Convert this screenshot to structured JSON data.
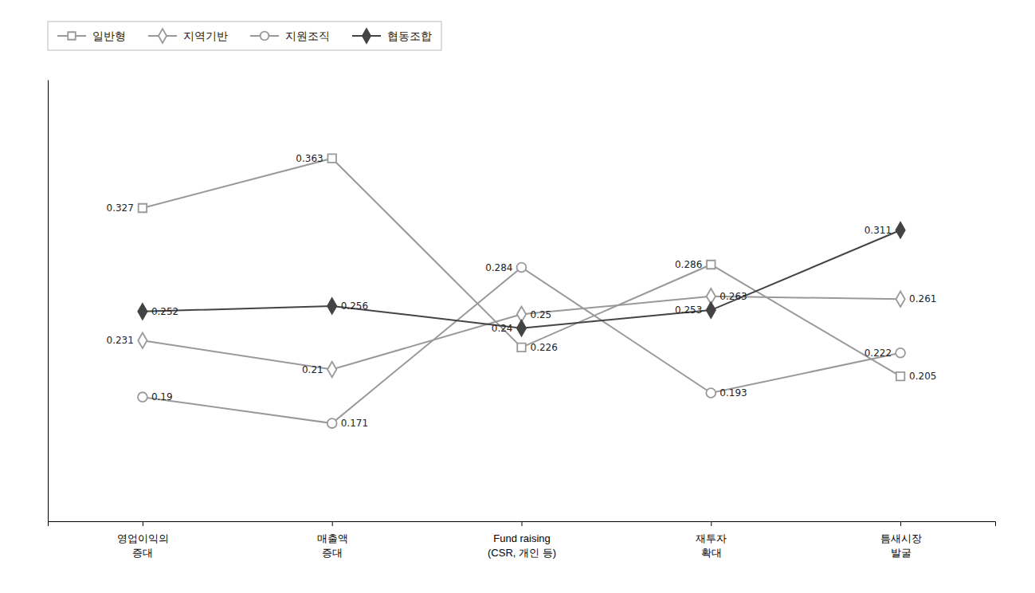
{
  "chart_data": {
    "type": "line",
    "categories": [
      "영업이익의\n증대",
      "매출액\n증대",
      "Fund raising\n(CSR, 개인 등)",
      "재투자\n확대",
      "틈새시장\n발굴"
    ],
    "series": [
      {
        "name": "일반형",
        "color": "#999999",
        "marker": "square-open",
        "values": [
          0.327,
          0.363,
          0.226,
          0.286,
          0.205
        ]
      },
      {
        "name": "지역기반",
        "color": "#999999",
        "marker": "diamond-open",
        "values": [
          0.231,
          0.21,
          0.25,
          0.263,
          0.261
        ]
      },
      {
        "name": "지원조직",
        "color": "#999999",
        "marker": "circle-open",
        "values": [
          0.19,
          0.171,
          0.284,
          0.193,
          0.222
        ]
      },
      {
        "name": "협동조합",
        "color": "#444444",
        "marker": "diamond",
        "values": [
          0.252,
          0.256,
          0.24,
          0.253,
          0.311
        ]
      }
    ],
    "ylim": [
      0.1,
      0.42
    ],
    "tick_labels": "x",
    "grid": false,
    "legend": "top",
    "data_labels": true
  }
}
